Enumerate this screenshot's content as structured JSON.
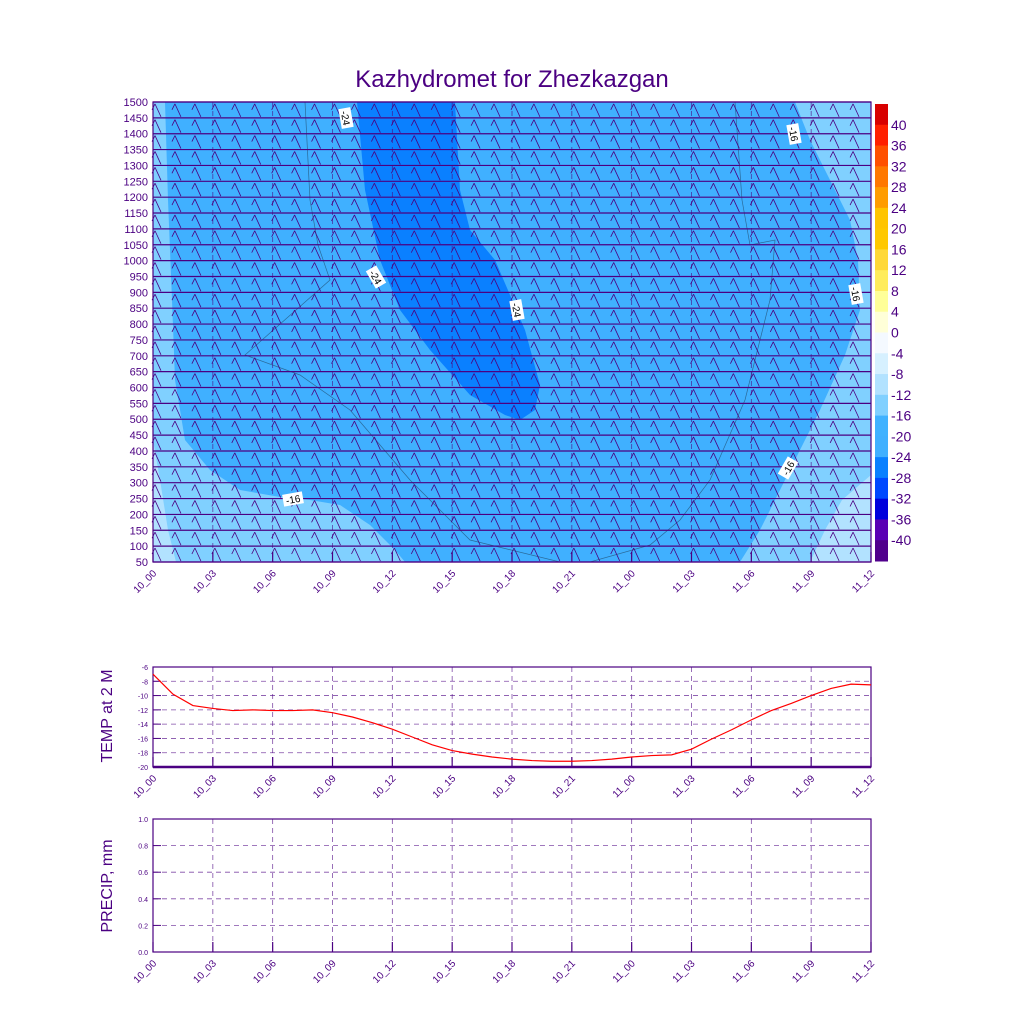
{
  "chart_data": [
    {
      "type": "heatmap",
      "title": "Kazhydromet for Zhezkazgan",
      "xlabel": "",
      "ylabel": "",
      "x_tick_labels": [
        "10_00",
        "10_03",
        "10_06",
        "10_09",
        "10_12",
        "10_15",
        "10_18",
        "10_21",
        "11_00",
        "11_03",
        "11_06",
        "11_09",
        "11_12"
      ],
      "y_tick_labels": [
        "1500",
        "1450",
        "1400",
        "1350",
        "1300",
        "1250",
        "1200",
        "1150",
        "1100",
        "1050",
        "1000",
        "950",
        "900",
        "850",
        "800",
        "750",
        "700",
        "650",
        "600",
        "550",
        "500",
        "450",
        "400",
        "350",
        "300",
        "250",
        "200",
        "150",
        "100",
        "50"
      ],
      "ylim": [
        50,
        1500
      ],
      "contour_labels": [
        "-24",
        "-24",
        "-24",
        "-16",
        "-16",
        "-16",
        "-16"
      ],
      "colorbar": {
        "labels": [
          "40",
          "36",
          "32",
          "28",
          "24",
          "20",
          "16",
          "12",
          "8",
          "4",
          "0",
          "-4",
          "-8",
          "-12",
          "-16",
          "-20",
          "-24",
          "-28",
          "-32",
          "-36",
          "-40"
        ],
        "colors": [
          "#d80000",
          "#ff2000",
          "#ff5000",
          "#ff7800",
          "#ff9c00",
          "#ffc400",
          "#ffc800",
          "#ffd838",
          "#ffec5c",
          "#ffff99",
          "#ffffd8",
          "#f4f9ff",
          "#d6f0ff",
          "#b2e2ff",
          "#80d0ff",
          "#40b2ff",
          "#40b0ff",
          "#0a80ff",
          "#0048ff",
          "#0000dc",
          "#5a00b4",
          "#50008c"
        ]
      }
    },
    {
      "type": "line",
      "title": "",
      "ylabel": "TEMP at 2 M",
      "x_tick_labels": [
        "10_00",
        "10_03",
        "10_06",
        "10_09",
        "10_12",
        "10_15",
        "10_18",
        "10_21",
        "11_00",
        "11_03",
        "11_06",
        "11_09",
        "11_12"
      ],
      "y_tick_labels": [
        "-6",
        "-8",
        "-10",
        "-12",
        "-14",
        "-16",
        "-18",
        "-20"
      ],
      "ylim": [
        -20,
        -6
      ],
      "x_hours": [
        0,
        1,
        2,
        3,
        4,
        5,
        6,
        7,
        8,
        9,
        10,
        11,
        12,
        13,
        14,
        15,
        16,
        17,
        18,
        19,
        20,
        21,
        22,
        23,
        24,
        25,
        26,
        27,
        28,
        29,
        30,
        31,
        32,
        33,
        34,
        35,
        36
      ],
      "values": [
        -7,
        -9.8,
        -11.4,
        -11.8,
        -12.1,
        -12.0,
        -12.1,
        -12.1,
        -12.0,
        -12.4,
        -13.0,
        -13.8,
        -14.7,
        -15.8,
        -16.9,
        -17.7,
        -18.2,
        -18.6,
        -18.9,
        -19.1,
        -19.2,
        -19.2,
        -19.1,
        -18.9,
        -18.6,
        -18.4,
        -18.3,
        -17.5,
        -16.1,
        -14.8,
        -13.4,
        -12.1,
        -11.1,
        -10.0,
        -9.0,
        -8.4,
        -8.5
      ],
      "color": "#ff0000"
    },
    {
      "type": "line",
      "title": "",
      "ylabel": "PRECIP, mm",
      "x_tick_labels": [
        "10_00",
        "10_03",
        "10_06",
        "10_09",
        "10_12",
        "10_15",
        "10_18",
        "10_21",
        "11_00",
        "11_03",
        "11_06",
        "11_09",
        "11_12"
      ],
      "y_tick_labels": [
        "1.0",
        "0.8",
        "0.6",
        "0.4",
        "0.2",
        "0.0"
      ],
      "ylim": [
        0,
        1
      ],
      "values": []
    }
  ]
}
